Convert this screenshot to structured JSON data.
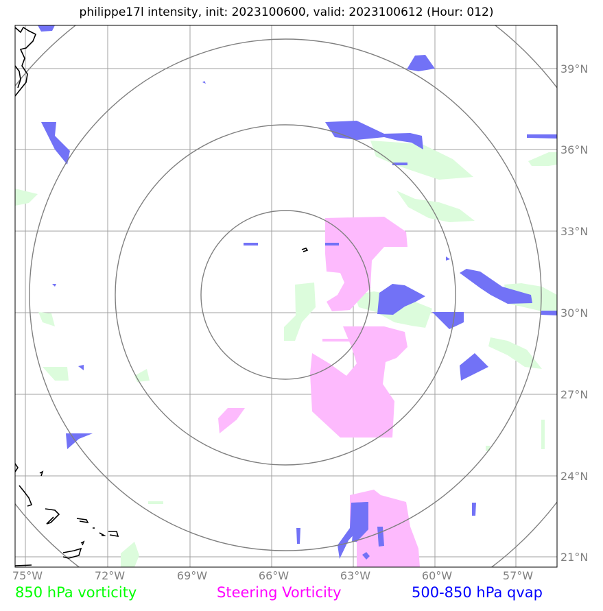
{
  "title": "philippe17l intensity, init: 2023100600, valid: 2023100612 (Hour: 012)",
  "lon_ticks": [
    "75°W",
    "72°W",
    "69°W",
    "66°W",
    "63°W",
    "60°W",
    "57°W"
  ],
  "lat_ticks": [
    "39°N",
    "36°N",
    "33°N",
    "30°N",
    "27°N",
    "24°N",
    "21°N"
  ],
  "legend": {
    "green_label": "850 hPa vorticity",
    "magenta_label": "Steering Vorticity",
    "blue_label": "500-850 hPa qvap"
  },
  "colors": {
    "green": "#00ff00",
    "magenta": "#ff00ff",
    "blue": "#0000ff",
    "green_fill": "#dcfcdc",
    "magenta_fill": "#fdbafd",
    "blue_fill": "#7272f6",
    "grid": "#a0a0a0",
    "rings": "#808080"
  },
  "map": {
    "lon_range": [
      "75.5°W",
      "55.5°W"
    ],
    "lat_range": [
      "20.6°N",
      "40.3°N"
    ],
    "range_rings": 4
  }
}
